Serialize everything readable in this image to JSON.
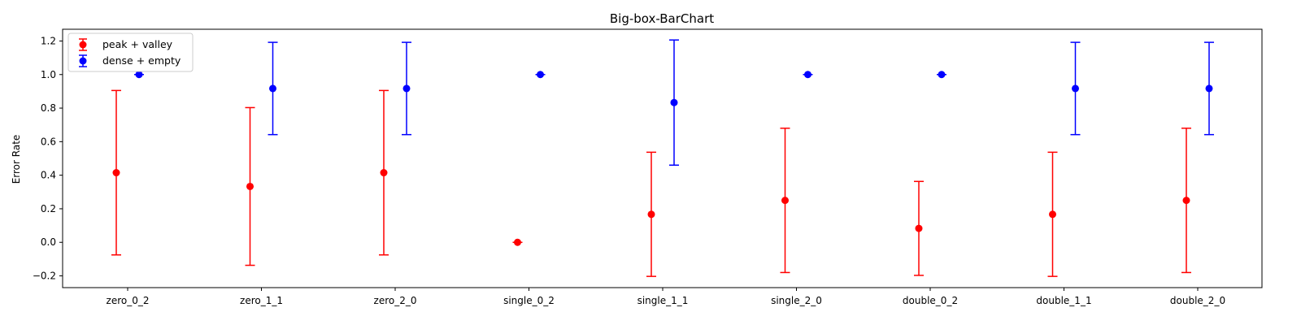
{
  "chart_data": {
    "type": "errorbar",
    "title": "Big-box-BarChart",
    "xlabel": "",
    "ylabel": "Error Rate",
    "ylim": [
      -0.27,
      1.27
    ],
    "yticks": [
      -0.2,
      0.0,
      0.2,
      0.4,
      0.6,
      0.8,
      1.0,
      1.2
    ],
    "ytick_labels": [
      "−0.2",
      "0.0",
      "0.2",
      "0.4",
      "0.6",
      "0.8",
      "1.0",
      "1.2"
    ],
    "categories": [
      "zero_0_2",
      "zero_1_1",
      "zero_2_0",
      "single_0_2",
      "single_1_1",
      "single_2_0",
      "double_0_2",
      "double_1_1",
      "double_2_0"
    ],
    "grid": false,
    "legend_position": "top-left",
    "series": [
      {
        "name": "peak + valley",
        "color": "#ff0000",
        "values": [
          0.415,
          0.333,
          0.415,
          0.0,
          0.167,
          0.25,
          0.083,
          0.167,
          0.25
        ],
        "errors": [
          0.49,
          0.47,
          0.49,
          0.0,
          0.37,
          0.43,
          0.28,
          0.37,
          0.43
        ]
      },
      {
        "name": "dense + empty",
        "color": "#0000ff",
        "values": [
          1.0,
          0.917,
          0.917,
          1.0,
          0.833,
          1.0,
          1.0,
          0.917,
          0.917
        ],
        "errors": [
          0.0,
          0.275,
          0.275,
          0.0,
          0.373,
          0.0,
          0.0,
          0.275,
          0.275
        ]
      }
    ]
  }
}
